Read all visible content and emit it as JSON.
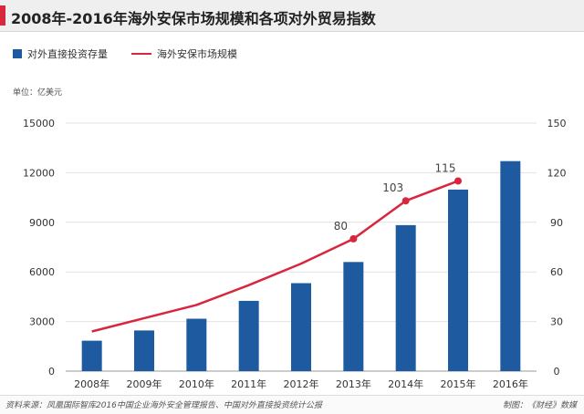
{
  "title": "2008年-2016年海外安保市场规模和各项对外贸易指数",
  "legend": {
    "bar_label": "对外直接投资存量",
    "line_label": "海外安保市场规模"
  },
  "unit": "单位：亿美元",
  "footer": {
    "source": "资料来源：凤凰国际智库2016中国企业海外安全管理报告、中国对外直接投资统计公报",
    "credit": "制图：《财经》数媒"
  },
  "colors": {
    "bar": "#1e5aa0",
    "line": "#d7263d",
    "accent": "#d7263d"
  },
  "chart_data": {
    "type": "bar",
    "title": "2008年-2016年海外安保市场规模和各项对外贸易指数",
    "categories": [
      "2008年",
      "2009年",
      "2010年",
      "2011年",
      "2012年",
      "2013年",
      "2014年",
      "2015年",
      "2016年"
    ],
    "series": [
      {
        "name": "对外直接投资存量",
        "type": "bar",
        "axis": "left",
        "values": [
          1840,
          2460,
          3170,
          4250,
          5320,
          6600,
          8830,
          10980,
          12700
        ]
      },
      {
        "name": "海外安保市场规模",
        "type": "line",
        "axis": "right",
        "values": [
          24,
          32,
          40,
          52,
          65,
          80,
          103,
          115,
          null
        ],
        "data_labels": [
          null,
          null,
          null,
          null,
          null,
          "80",
          "103",
          "115",
          null
        ]
      }
    ],
    "y_left": {
      "min": 0,
      "max": 15000,
      "ticks": [
        "0",
        "3000",
        "6000",
        "9000",
        "12000",
        "15000"
      ]
    },
    "y_right": {
      "min": 0,
      "max": 150,
      "ticks": [
        "0",
        "30",
        "60",
        "90",
        "120",
        "150"
      ]
    },
    "ylabel": "单位：亿美元",
    "grid": true
  }
}
